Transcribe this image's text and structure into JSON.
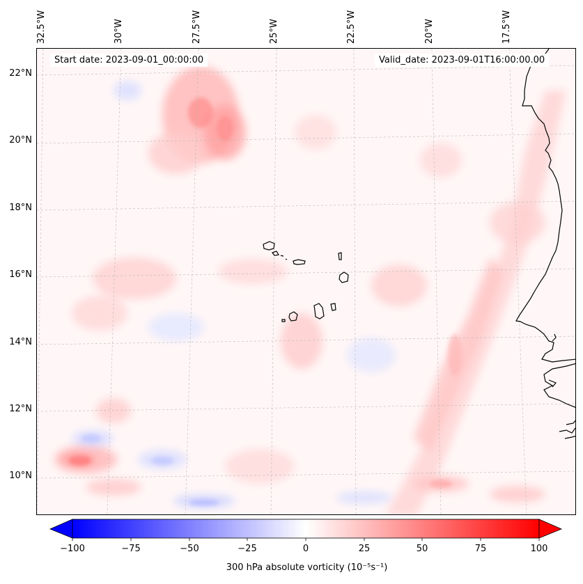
{
  "header": {
    "start_date": "Start date: 2023-09-01_00:00:00",
    "valid_date": "Valid_date: 2023-09-01T16:00:00.00"
  },
  "map": {
    "region": "Eastern tropical Atlantic – Cape Verde Islands and West African coast",
    "longitude_labels": [
      "32.5°W",
      "30°W",
      "27.5°W",
      "25°W",
      "22.5°W",
      "20°W",
      "17.5°W"
    ],
    "latitude_labels": [
      "22°N",
      "20°N",
      "18°N",
      "16°N",
      "14°N",
      "12°N",
      "10°N"
    ],
    "gridlines": true,
    "field": "300 hPa absolute vorticity",
    "colors": {
      "negative": "#0000ff",
      "zero": "#ffffff",
      "positive": "#ff0000",
      "coastline": "#000000",
      "gridline": "#b0b0b0"
    }
  },
  "colorbar": {
    "ticks": [
      "−100",
      "−75",
      "−50",
      "−25",
      "0",
      "25",
      "50",
      "75",
      "100"
    ],
    "label": "300 hPa absolute vorticity (10⁻⁵s⁻¹)",
    "range": [
      -100,
      100
    ],
    "extend": "both"
  }
}
